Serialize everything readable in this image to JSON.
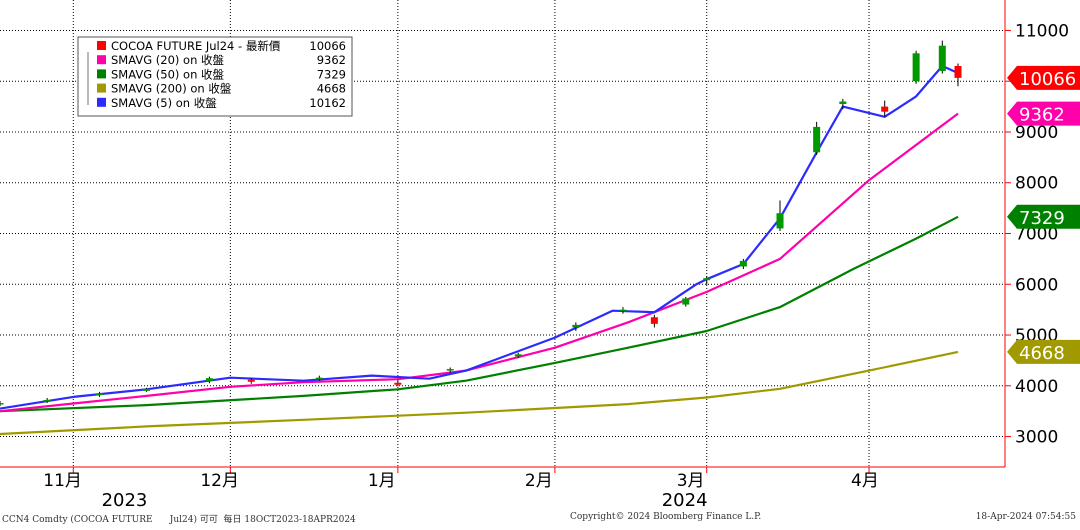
{
  "chart_data": {
    "type": "candlestick",
    "instrument": "COCOA FUTURE Jul24",
    "legend": {
      "placement": "top-left",
      "entries": [
        {
          "label": "COCOA FUTURE Jul24 - 最新價",
          "value": "10066",
          "color": "#ff0000"
        },
        {
          "label": "SMAVG (20)  on 收盤",
          "value": "9362",
          "color": "#ff00aa"
        },
        {
          "label": "SMAVG (50)  on 收盤",
          "value": "7329",
          "color": "#008000"
        },
        {
          "label": "SMAVG (200)  on 收盤",
          "value": "4668",
          "color": "#a09a00"
        },
        {
          "label": "SMAVG (5)  on 收盤",
          "value": "10162",
          "color": "#2b2bff"
        }
      ]
    },
    "y_axis": {
      "position": "right",
      "ticks": [
        "11000",
        "10000",
        "9000",
        "8000",
        "7000",
        "6000",
        "5000",
        "4000",
        "3000"
      ],
      "range": [
        2400,
        11600
      ]
    },
    "x_axis": {
      "month_labels": [
        {
          "label": "11月",
          "date": "2023-11-01"
        },
        {
          "label": "12月",
          "date": "2023-12-01"
        },
        {
          "label": "1月",
          "date": "2024-01-02"
        },
        {
          "label": "2月",
          "date": "2024-02-01"
        },
        {
          "label": "3月",
          "date": "2024-03-01"
        },
        {
          "label": "4月",
          "date": "2024-04-01"
        }
      ],
      "year_labels": [
        {
          "label": "2023",
          "date": "2023-11-15"
        },
        {
          "label": "2024",
          "date": "2024-03-01"
        }
      ],
      "range": [
        "2023-10-18",
        "2024-04-18"
      ]
    },
    "grid": true,
    "price_tags": [
      {
        "label": "10066",
        "value": 10066,
        "color": "#ff0000"
      },
      {
        "label": "9362",
        "value": 9362,
        "color": "#ff00aa"
      },
      {
        "label": "7329",
        "value": 7329,
        "color": "#008000"
      },
      {
        "label": "4668",
        "value": 4668,
        "color": "#a09a00"
      }
    ],
    "up_color": "#009900",
    "down_color": "#ff0000",
    "candles": [
      {
        "date": "2023-10-18",
        "open": 3640,
        "high": 3700,
        "low": 3600,
        "close": 3660
      },
      {
        "date": "2023-10-27",
        "open": 3690,
        "high": 3760,
        "low": 3660,
        "close": 3720
      },
      {
        "date": "2023-11-06",
        "open": 3820,
        "high": 3880,
        "low": 3780,
        "close": 3850
      },
      {
        "date": "2023-11-15",
        "open": 3900,
        "high": 3960,
        "low": 3880,
        "close": 3940
      },
      {
        "date": "2023-11-27",
        "open": 4090,
        "high": 4180,
        "low": 4050,
        "close": 4150
      },
      {
        "date": "2023-12-05",
        "open": 4120,
        "high": 4150,
        "low": 4040,
        "close": 4080
      },
      {
        "date": "2023-12-18",
        "open": 4150,
        "high": 4200,
        "low": 4100,
        "close": 4160
      },
      {
        "date": "2024-01-02",
        "open": 4060,
        "high": 4110,
        "low": 3990,
        "close": 4020
      },
      {
        "date": "2024-01-12",
        "open": 4300,
        "high": 4360,
        "low": 4260,
        "close": 4330
      },
      {
        "date": "2024-01-25",
        "open": 4580,
        "high": 4650,
        "low": 4550,
        "close": 4620
      },
      {
        "date": "2024-02-05",
        "open": 5150,
        "high": 5250,
        "low": 5080,
        "close": 5200
      },
      {
        "date": "2024-02-14",
        "open": 5480,
        "high": 5550,
        "low": 5420,
        "close": 5500
      },
      {
        "date": "2024-02-20",
        "open": 5350,
        "high": 5400,
        "low": 5150,
        "close": 5220
      },
      {
        "date": "2024-02-26",
        "open": 5600,
        "high": 5750,
        "low": 5560,
        "close": 5720
      },
      {
        "date": "2024-03-01",
        "open": 6080,
        "high": 6150,
        "low": 5990,
        "close": 6120
      },
      {
        "date": "2024-03-08",
        "open": 6350,
        "high": 6500,
        "low": 6300,
        "close": 6460
      },
      {
        "date": "2024-03-15",
        "open": 7100,
        "high": 7650,
        "low": 7050,
        "close": 7400
      },
      {
        "date": "2024-03-22",
        "open": 8600,
        "high": 9200,
        "low": 8550,
        "close": 9100
      },
      {
        "date": "2024-03-27",
        "open": 9550,
        "high": 9650,
        "low": 9450,
        "close": 9600
      },
      {
        "date": "2024-04-04",
        "open": 9500,
        "high": 9620,
        "low": 9300,
        "close": 9400
      },
      {
        "date": "2024-04-10",
        "open": 10000,
        "high": 10600,
        "low": 9950,
        "close": 10550
      },
      {
        "date": "2024-04-15",
        "open": 10200,
        "high": 10800,
        "low": 10150,
        "close": 10700
      },
      {
        "date": "2024-04-18",
        "open": 10300,
        "high": 10350,
        "low": 9900,
        "close": 10066
      }
    ],
    "series": [
      {
        "name": "SMAVG (200)  on 收盤",
        "color": "#a09a00",
        "points": [
          [
            "2023-10-18",
            3050
          ],
          [
            "2023-11-15",
            3200
          ],
          [
            "2023-12-15",
            3330
          ],
          [
            "2024-01-15",
            3470
          ],
          [
            "2024-02-15",
            3640
          ],
          [
            "2024-03-01",
            3770
          ],
          [
            "2024-03-15",
            3940
          ],
          [
            "2024-04-01",
            4300
          ],
          [
            "2024-04-18",
            4668
          ]
        ]
      },
      {
        "name": "SMAVG (50)  on 收盤",
        "color": "#008000",
        "points": [
          [
            "2023-10-18",
            3500
          ],
          [
            "2023-11-15",
            3620
          ],
          [
            "2023-12-15",
            3800
          ],
          [
            "2024-01-02",
            3930
          ],
          [
            "2024-01-15",
            4100
          ],
          [
            "2024-02-01",
            4450
          ],
          [
            "2024-02-15",
            4750
          ],
          [
            "2024-03-01",
            5080
          ],
          [
            "2024-03-15",
            5550
          ],
          [
            "2024-03-29",
            6300
          ],
          [
            "2024-04-10",
            6900
          ],
          [
            "2024-04-18",
            7329
          ]
        ]
      },
      {
        "name": "SMAVG (20)  on 收盤",
        "color": "#ff00aa",
        "points": [
          [
            "2023-10-18",
            3500
          ],
          [
            "2023-11-01",
            3650
          ],
          [
            "2023-11-15",
            3800
          ],
          [
            "2023-12-01",
            3980
          ],
          [
            "2023-12-15",
            4070
          ],
          [
            "2024-01-02",
            4130
          ],
          [
            "2024-01-15",
            4300
          ],
          [
            "2024-02-01",
            4750
          ],
          [
            "2024-02-15",
            5250
          ],
          [
            "2024-03-01",
            5850
          ],
          [
            "2024-03-15",
            6500
          ],
          [
            "2024-04-01",
            8050
          ],
          [
            "2024-04-18",
            9362
          ]
        ]
      },
      {
        "name": "SMAVG (5)  on 收盤",
        "color": "#2b2bff",
        "points": [
          [
            "2023-10-18",
            3550
          ],
          [
            "2023-11-01",
            3780
          ],
          [
            "2023-11-15",
            3930
          ],
          [
            "2023-12-01",
            4160
          ],
          [
            "2023-12-15",
            4100
          ],
          [
            "2023-12-28",
            4200
          ],
          [
            "2024-01-08",
            4140
          ],
          [
            "2024-01-15",
            4300
          ],
          [
            "2024-02-01",
            4950
          ],
          [
            "2024-02-12",
            5480
          ],
          [
            "2024-02-20",
            5450
          ],
          [
            "2024-02-28",
            6000
          ],
          [
            "2024-03-01",
            6100
          ],
          [
            "2024-03-08",
            6400
          ],
          [
            "2024-03-15",
            7300
          ],
          [
            "2024-03-22",
            8600
          ],
          [
            "2024-03-27",
            9500
          ],
          [
            "2024-04-04",
            9300
          ],
          [
            "2024-04-10",
            9700
          ],
          [
            "2024-04-15",
            10300
          ],
          [
            "2024-04-18",
            10162
          ]
        ]
      }
    ]
  },
  "footer": {
    "left": "CCN4 Comdty (COCOA FUTURE      Jul24) 可可  每日 18OCT2023-18APR2024",
    "center": "Copyright© 2024 Bloomberg Finance L.P.",
    "right": "18-Apr-2024 07:54:55"
  }
}
